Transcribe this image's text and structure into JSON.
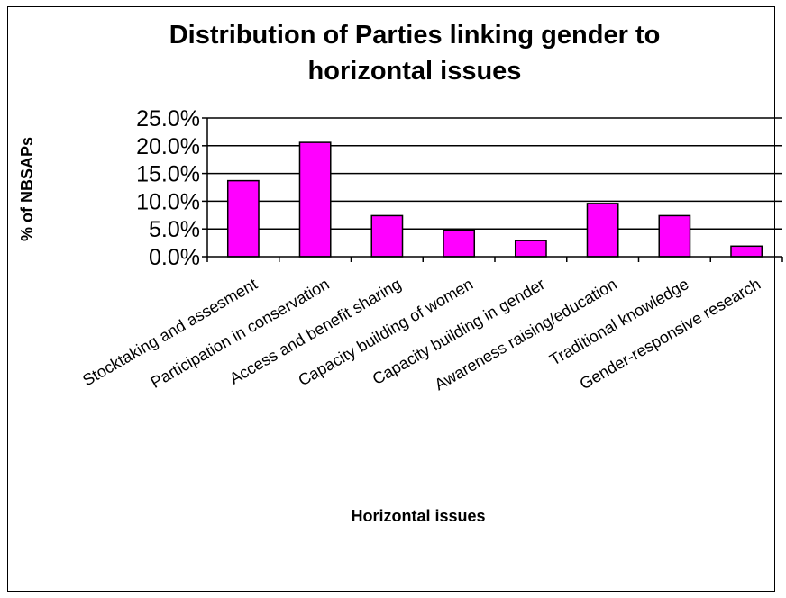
{
  "chart_data": {
    "type": "bar",
    "title": "Distribution of Parties linking gender to horizontal issues",
    "title_lines": [
      "Distribution of Parties linking gender to",
      "horizontal issues"
    ],
    "xlabel": "Horizontal issues",
    "ylabel": "% of NBSAPs",
    "ylabel_visible": "% of NBSAPs",
    "categories": [
      "Stocktaking and assesment",
      "Participation in conservation",
      "Access and benefit sharing",
      "Capacity building of women",
      "Capacity building in gender",
      "Awareness raising/education",
      "Traditional knowledge",
      "Gender-responsive research"
    ],
    "values": [
      13.7,
      20.6,
      7.4,
      4.8,
      2.9,
      9.6,
      7.4,
      1.9
    ],
    "ylim": [
      0,
      25
    ],
    "yticks": [
      "0.0%",
      "5.0%",
      "10.0%",
      "15.0%",
      "20.0%",
      "25.0%"
    ],
    "grid": true,
    "legend": "none",
    "bar_color": "#ff00ff",
    "bar_outline": "#000000",
    "grid_color": "#000000"
  }
}
